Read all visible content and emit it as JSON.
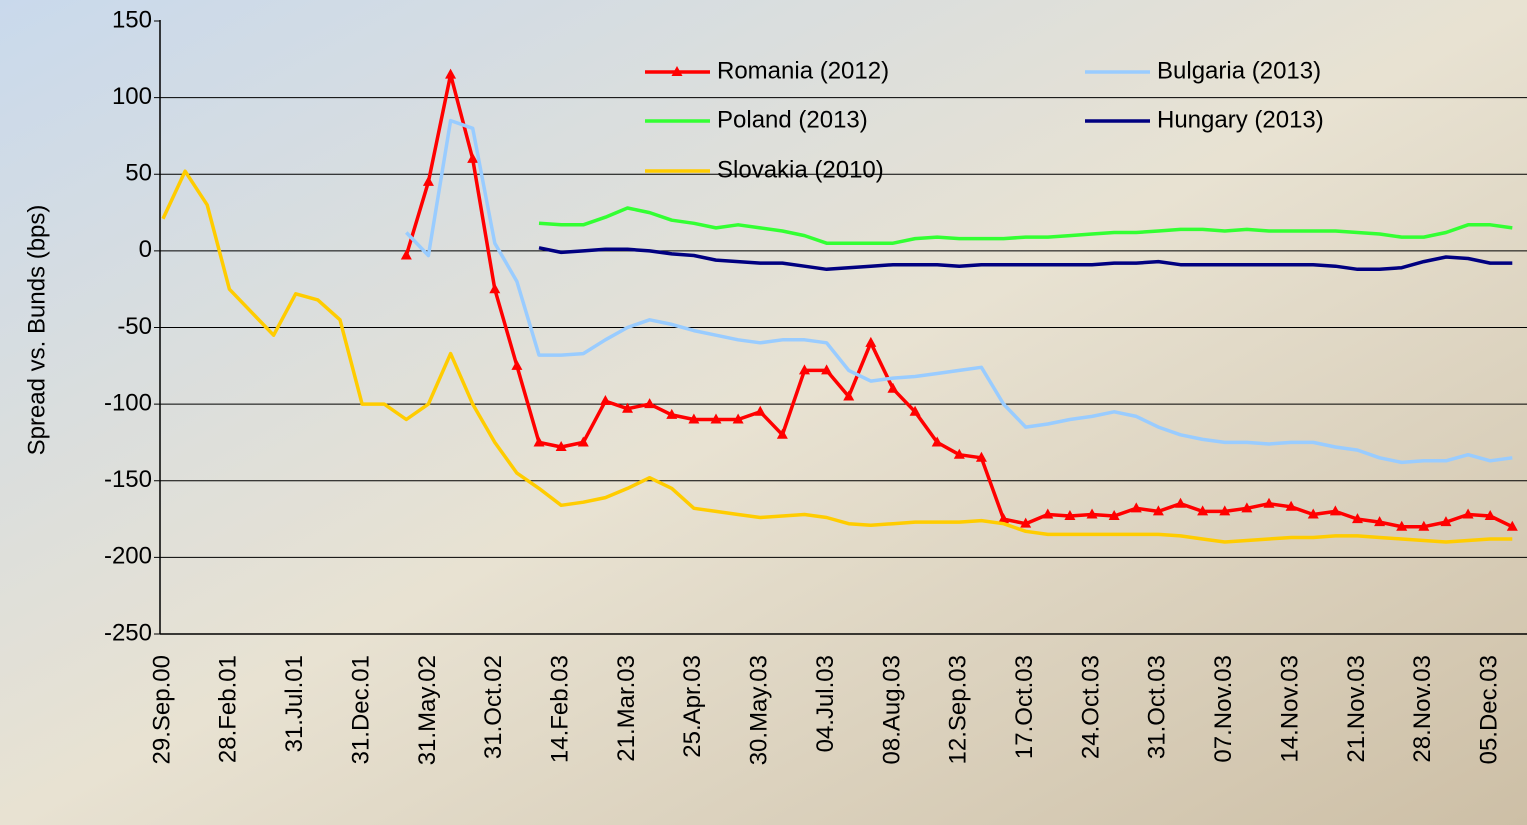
{
  "chart_data": {
    "type": "line",
    "y_label": "Spread vs. Bunds (bps)",
    "categories": [
      "29.Sep.00",
      null,
      null,
      "28.Feb.01",
      null,
      null,
      "31.Jul.01",
      null,
      null,
      "31.Dec.01",
      null,
      null,
      "31.May.02",
      null,
      null,
      "31.Oct.02",
      null,
      null,
      "14.Feb.03",
      null,
      null,
      "21.Mar.03",
      null,
      null,
      "25.Apr.03",
      null,
      null,
      "30.May.03",
      null,
      null,
      "04.Jul.03",
      null,
      null,
      "08.Aug.03",
      null,
      null,
      "12.Sep.03",
      null,
      null,
      "17.Oct.03",
      null,
      null,
      "24.Oct.03",
      null,
      null,
      "31.Oct.03",
      null,
      null,
      "07.Nov.03",
      null,
      null,
      "14.Nov.03",
      null,
      null,
      "21.Nov.03",
      null,
      null,
      "28.Nov.03",
      null,
      null,
      "05.Dec.03",
      null
    ],
    "ylim": [
      -250,
      150
    ],
    "yticks": [
      -250,
      -200,
      -150,
      -100,
      -50,
      0,
      50,
      100,
      150
    ],
    "grid": true,
    "series": [
      {
        "name": "Romania (2012)",
        "color": "#ff0000",
        "marker": "triangle",
        "values": [
          null,
          null,
          null,
          null,
          null,
          null,
          null,
          null,
          null,
          null,
          null,
          -3,
          45,
          115,
          60,
          -25,
          -75,
          -125,
          -128,
          -125,
          -98,
          -103,
          -100,
          -107,
          -110,
          -110,
          -110,
          -105,
          -120,
          -78,
          -78,
          -95,
          -60,
          -90,
          -105,
          -125,
          -133,
          -135,
          -175,
          -178,
          -172,
          -173,
          -172,
          -173,
          -168,
          -170,
          -165,
          -170,
          -170,
          -168,
          -165,
          -167,
          -172,
          -170,
          -175,
          -177,
          -180,
          -180,
          -177,
          -172,
          -173,
          -180
        ]
      },
      {
        "name": "Bulgaria (2013)",
        "color": "#99ccff",
        "values": [
          null,
          null,
          null,
          null,
          null,
          null,
          null,
          null,
          null,
          null,
          null,
          12,
          -3,
          85,
          80,
          5,
          -20,
          -68,
          -68,
          -67,
          -58,
          -50,
          -45,
          -48,
          -52,
          -55,
          -58,
          -60,
          -58,
          -58,
          -60,
          -78,
          -85,
          -83,
          -82,
          -80,
          -78,
          -76,
          -100,
          -115,
          -113,
          -110,
          -108,
          -105,
          -108,
          -115,
          -120,
          -123,
          -125,
          -125,
          -126,
          -125,
          -125,
          -128,
          -130,
          -135,
          -138,
          -137,
          -137,
          -133,
          -137,
          -135
        ]
      },
      {
        "name": "Poland (2013)",
        "color": "#33ff33",
        "values": [
          null,
          null,
          null,
          null,
          null,
          null,
          null,
          null,
          null,
          null,
          null,
          null,
          null,
          null,
          null,
          null,
          null,
          18,
          17,
          17,
          22,
          28,
          25,
          20,
          18,
          15,
          17,
          15,
          13,
          10,
          5,
          5,
          5,
          5,
          8,
          9,
          8,
          8,
          8,
          9,
          9,
          10,
          11,
          12,
          12,
          13,
          14,
          14,
          13,
          14,
          13,
          13,
          13,
          13,
          12,
          11,
          9,
          9,
          12,
          17,
          17,
          15
        ]
      },
      {
        "name": "Hungary (2013)",
        "color": "#000080",
        "values": [
          null,
          null,
          null,
          null,
          null,
          null,
          null,
          null,
          null,
          null,
          null,
          null,
          null,
          null,
          null,
          null,
          null,
          2,
          -1,
          0,
          1,
          1,
          0,
          -2,
          -3,
          -6,
          -7,
          -8,
          -8,
          -10,
          -12,
          -11,
          -10,
          -9,
          -9,
          -9,
          -10,
          -9,
          -9,
          -9,
          -9,
          -9,
          -9,
          -8,
          -8,
          -7,
          -9,
          -9,
          -9,
          -9,
          -9,
          -9,
          -9,
          -10,
          -12,
          -12,
          -11,
          -7,
          -4,
          -5,
          -8,
          -8
        ]
      },
      {
        "name": "Slovakia (2010)",
        "color": "#ffcc00",
        "values": [
          21,
          52,
          30,
          -25,
          -40,
          -55,
          -28,
          -32,
          -45,
          -100,
          -100,
          -110,
          -100,
          -67,
          -100,
          -125,
          -145,
          -155,
          -166,
          -164,
          -161,
          -155,
          -148,
          -155,
          -168,
          -170,
          -172,
          -174,
          -173,
          -172,
          -174,
          -178,
          -179,
          -178,
          -177,
          -177,
          -177,
          -176,
          -178,
          -183,
          -185,
          -185,
          -185,
          -185,
          -185,
          -185,
          -186,
          -188,
          -190,
          -189,
          -188,
          -187,
          -187,
          -186,
          -186,
          -187,
          -188,
          -189,
          -190,
          -189,
          -188,
          -188
        ]
      }
    ]
  }
}
